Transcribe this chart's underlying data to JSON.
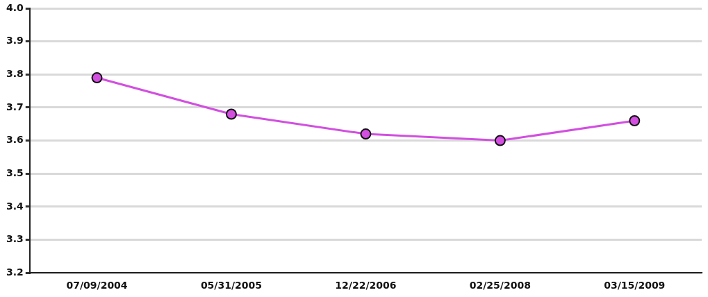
{
  "chart_data": {
    "type": "line",
    "categories": [
      "07/09/2004",
      "05/31/2005",
      "12/22/2006",
      "02/25/2008",
      "03/15/2009"
    ],
    "series": [
      {
        "color": "#d24fe0",
        "values": [
          3.79,
          3.68,
          3.62,
          3.6,
          3.66
        ]
      }
    ],
    "ylim": [
      3.2,
      4.0
    ],
    "yticks": [
      3.2,
      3.3,
      3.4,
      3.5,
      3.6,
      3.7,
      3.8,
      3.9,
      {
        "value": 4,
        "label": "4.0"
      }
    ],
    "grid": "y",
    "legend": false,
    "marker": "circle",
    "line_style": "solid"
  }
}
